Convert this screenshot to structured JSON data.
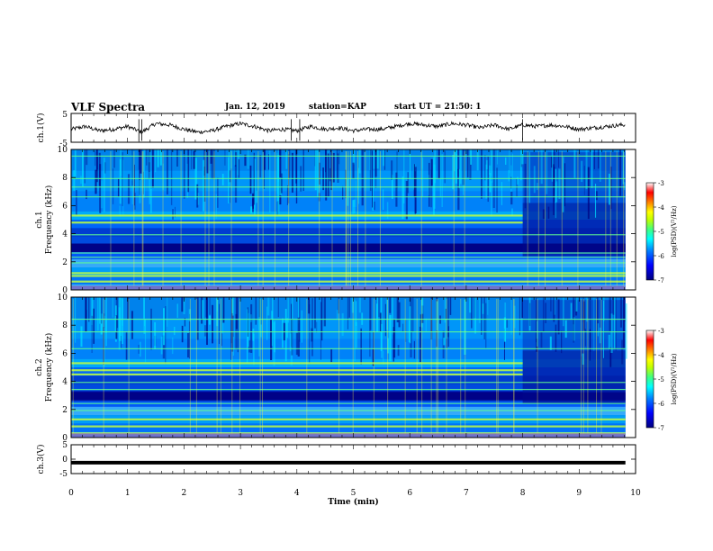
{
  "header": {
    "title": "VLF Spectra",
    "date": "Jan. 12, 2019",
    "station": "station=KAP",
    "start": "start UT =  21:50: 1"
  },
  "colors": {
    "trace": "#000000",
    "colormap": [
      "#00007f",
      "#0000ff",
      "#0080ff",
      "#00ffff",
      "#40ff80",
      "#c0ff00",
      "#ffff00",
      "#ff8000",
      "#ff0000",
      "#ffffff"
    ]
  },
  "chart_data": [
    {
      "type": "line",
      "panel": "ch1-waveform",
      "ylabel": "ch.1(V)",
      "ylim": [
        -5,
        5
      ],
      "yticks": [
        "5",
        "-5"
      ],
      "x": [
        0,
        0.25,
        0.5,
        0.75,
        1.0,
        1.25,
        1.5,
        1.75,
        2.0,
        2.25,
        2.5,
        2.75,
        3.0,
        3.25,
        3.5,
        3.75,
        4.0,
        4.25,
        4.5,
        4.75,
        5.0,
        5.25,
        5.5,
        5.75,
        6.0,
        6.25,
        6.5,
        6.75,
        7.0,
        7.25,
        7.5,
        7.75,
        8.0,
        8.25,
        8.5,
        8.75,
        9.0,
        9.25,
        9.5,
        9.75,
        9.82
      ],
      "y": [
        -0.5,
        0.5,
        -1.0,
        -0.5,
        0.5,
        -1.5,
        1.5,
        1.0,
        -0.5,
        -1.5,
        -1.0,
        0.5,
        1.5,
        0.5,
        -1.0,
        -0.5,
        -1.0,
        0.5,
        -0.5,
        0.0,
        -1.0,
        -0.5,
        -0.5,
        0.5,
        1.5,
        1.0,
        0.5,
        1.5,
        1.0,
        0.0,
        1.0,
        -0.5,
        1.0,
        0.5,
        1.0,
        0.5,
        -0.5,
        0.0,
        0.5,
        1.0,
        1.0
      ]
    },
    {
      "type": "heatmap",
      "panel": "ch1-spectrogram",
      "ylabel_top": "ch.1",
      "ylabel": "Frequency (kHz)",
      "ylim": [
        0,
        10
      ],
      "yticks": [
        "0",
        "2",
        "4",
        "6",
        "8",
        "10"
      ],
      "colorbar": {
        "label": "log(PSD)(V²/Hz)",
        "range": [
          -7,
          -3
        ],
        "ticks": [
          "-3",
          "-4",
          "-5",
          "-6",
          "-7"
        ]
      },
      "tonal_lines_khz": [
        0.6,
        1.0,
        1.2,
        1.9,
        2.3,
        2.6,
        3.9,
        4.8,
        5.3,
        6.6,
        7.3,
        7.9,
        9.5
      ],
      "quiet_band_khz": [
        2.7,
        3.3
      ],
      "change_at_min": 8.0
    },
    {
      "type": "heatmap",
      "panel": "ch2-spectrogram",
      "ylabel_top": "ch.2",
      "ylabel": "Frequency (kHz)",
      "ylim": [
        0,
        10
      ],
      "yticks": [
        "0",
        "2",
        "4",
        "6",
        "8",
        "10"
      ],
      "colorbar": {
        "label": "log(PSD)(V²/Hz)",
        "range": [
          -7,
          -3
        ],
        "ticks": [
          "-3",
          "-4",
          "-5",
          "-6",
          "-7"
        ]
      },
      "tonal_lines_khz": [
        0.3,
        0.8,
        1.3,
        1.9,
        2.4,
        3.4,
        3.9,
        4.5,
        4.8,
        5.3,
        6.3,
        7.5,
        8.4
      ],
      "quiet_band_khz": [
        2.6,
        3.2
      ],
      "change_at_min": 8.0
    },
    {
      "type": "line",
      "panel": "ch3-waveform",
      "ylabel": "ch.3(V)",
      "ylim": [
        -5,
        5
      ],
      "yticks": [
        "5",
        "0",
        "-5"
      ],
      "x": [
        0,
        9.82
      ],
      "y": [
        -1.2,
        -1.2
      ]
    }
  ],
  "xaxis": {
    "label": "Time (min)",
    "range": [
      0,
      10
    ],
    "ticks": [
      "0",
      "1",
      "2",
      "3",
      "4",
      "5",
      "6",
      "7",
      "8",
      "9",
      "10"
    ]
  }
}
